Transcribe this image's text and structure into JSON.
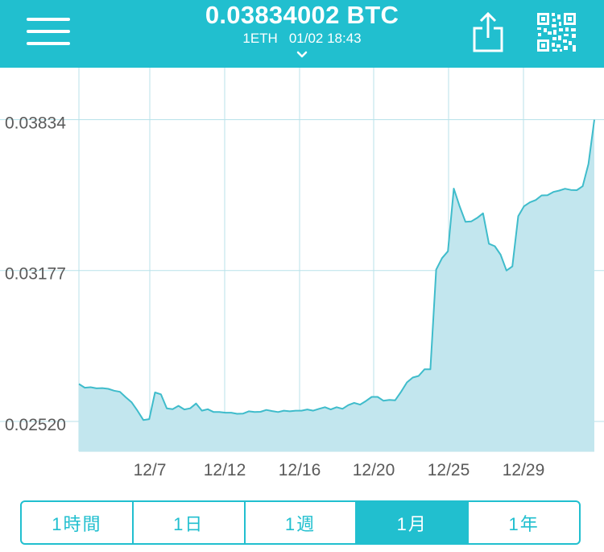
{
  "header": {
    "price": "0.03834002 BTC",
    "pair": "1ETH",
    "datetime": "01/02 18:43",
    "menu_icon": "hamburger-menu-icon",
    "share_icon": "share-icon",
    "qr_icon": "qr-code-icon",
    "chevron_icon": "chevron-down-icon"
  },
  "colors": {
    "accent": "#21bfcf",
    "fill": "#c2e6ee",
    "line": "#3fbccb",
    "grid": "#b8e2ea",
    "text": "#5a5a5a"
  },
  "chart_data": {
    "type": "area",
    "y_ticks": [
      "0.03834",
      "0.03177",
      "0.02520"
    ],
    "x_ticks": [
      "12/7",
      "12/12",
      "12/16",
      "12/20",
      "12/25",
      "12/29"
    ],
    "x_range": [
      "12/3",
      "1/2"
    ],
    "ylim": [
      0.0239,
      0.0399
    ],
    "grid": true,
    "series": [
      {
        "values": [
          0.02683,
          0.02667,
          0.02669,
          0.02664,
          0.02665,
          0.02662,
          0.02654,
          0.02649,
          0.02625,
          0.02603,
          0.02567,
          0.02526,
          0.0253,
          0.02646,
          0.02638,
          0.02577,
          0.02573,
          0.02588,
          0.02572,
          0.02577,
          0.02598,
          0.02567,
          0.02573,
          0.02561,
          0.02561,
          0.02558,
          0.02558,
          0.02553,
          0.02554,
          0.02564,
          0.02561,
          0.02562,
          0.0257,
          0.02565,
          0.02561,
          0.02567,
          0.02564,
          0.02567,
          0.02567,
          0.02572,
          0.02567,
          0.02575,
          0.02582,
          0.02572,
          0.02582,
          0.02575,
          0.02591,
          0.02601,
          0.02593,
          0.02609,
          0.02627,
          0.02627,
          0.0261,
          0.02614,
          0.02612,
          0.02649,
          0.0269,
          0.02711,
          0.02718,
          0.02747,
          0.02747,
          0.03181,
          0.03231,
          0.03261,
          0.03534,
          0.03457,
          0.03389,
          0.03391,
          0.03406,
          0.03426,
          0.03294,
          0.03283,
          0.03246,
          0.03177,
          0.03195,
          0.03414,
          0.03457,
          0.03474,
          0.03484,
          0.03504,
          0.03505,
          0.03519,
          0.03525,
          0.03533,
          0.03528,
          0.03527,
          0.03544,
          0.03641,
          0.03834
        ]
      }
    ]
  },
  "range_tabs": [
    {
      "label": "1時間"
    },
    {
      "label": "1日"
    },
    {
      "label": "1週"
    },
    {
      "label": "1月"
    },
    {
      "label": "1年"
    }
  ],
  "active_tab_index": 3
}
